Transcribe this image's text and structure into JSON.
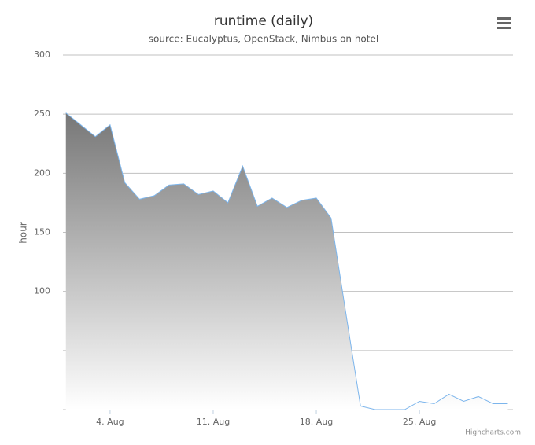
{
  "chart_data": {
    "type": "area",
    "title": "runtime (daily)",
    "subtitle": "source: Eucalyptus, OpenStack, Nimbus on hotel",
    "y_label": "hour",
    "credit": "Highcharts.com",
    "x": [
      1,
      2,
      3,
      4,
      5,
      6,
      7,
      8,
      9,
      10,
      11,
      12,
      13,
      14,
      15,
      16,
      17,
      18,
      19,
      20,
      21,
      22,
      23,
      24,
      25,
      26,
      27,
      28,
      29,
      30,
      31
    ],
    "values": [
      251,
      241,
      231,
      241,
      192,
      178,
      181,
      190,
      191,
      182,
      185,
      175,
      206,
      172,
      179,
      171,
      177,
      179,
      162,
      82,
      3,
      0,
      0,
      0,
      7,
      5,
      13,
      7,
      11,
      5,
      5
    ],
    "color": "#7cb5ec",
    "xlim": [
      0.8,
      31.35
    ],
    "xticks": [
      {
        "value": 4,
        "label": "4. Aug"
      },
      {
        "value": 11,
        "label": "11. Aug"
      },
      {
        "value": 18,
        "label": "18. Aug"
      },
      {
        "value": 25,
        "label": "25. Aug"
      }
    ],
    "ylim": [
      0,
      300
    ],
    "yticks": [
      {
        "value": 0,
        "label": null
      },
      {
        "value": 50,
        "label": null
      },
      100,
      150,
      200,
      250,
      300
    ],
    "grid": true
  }
}
